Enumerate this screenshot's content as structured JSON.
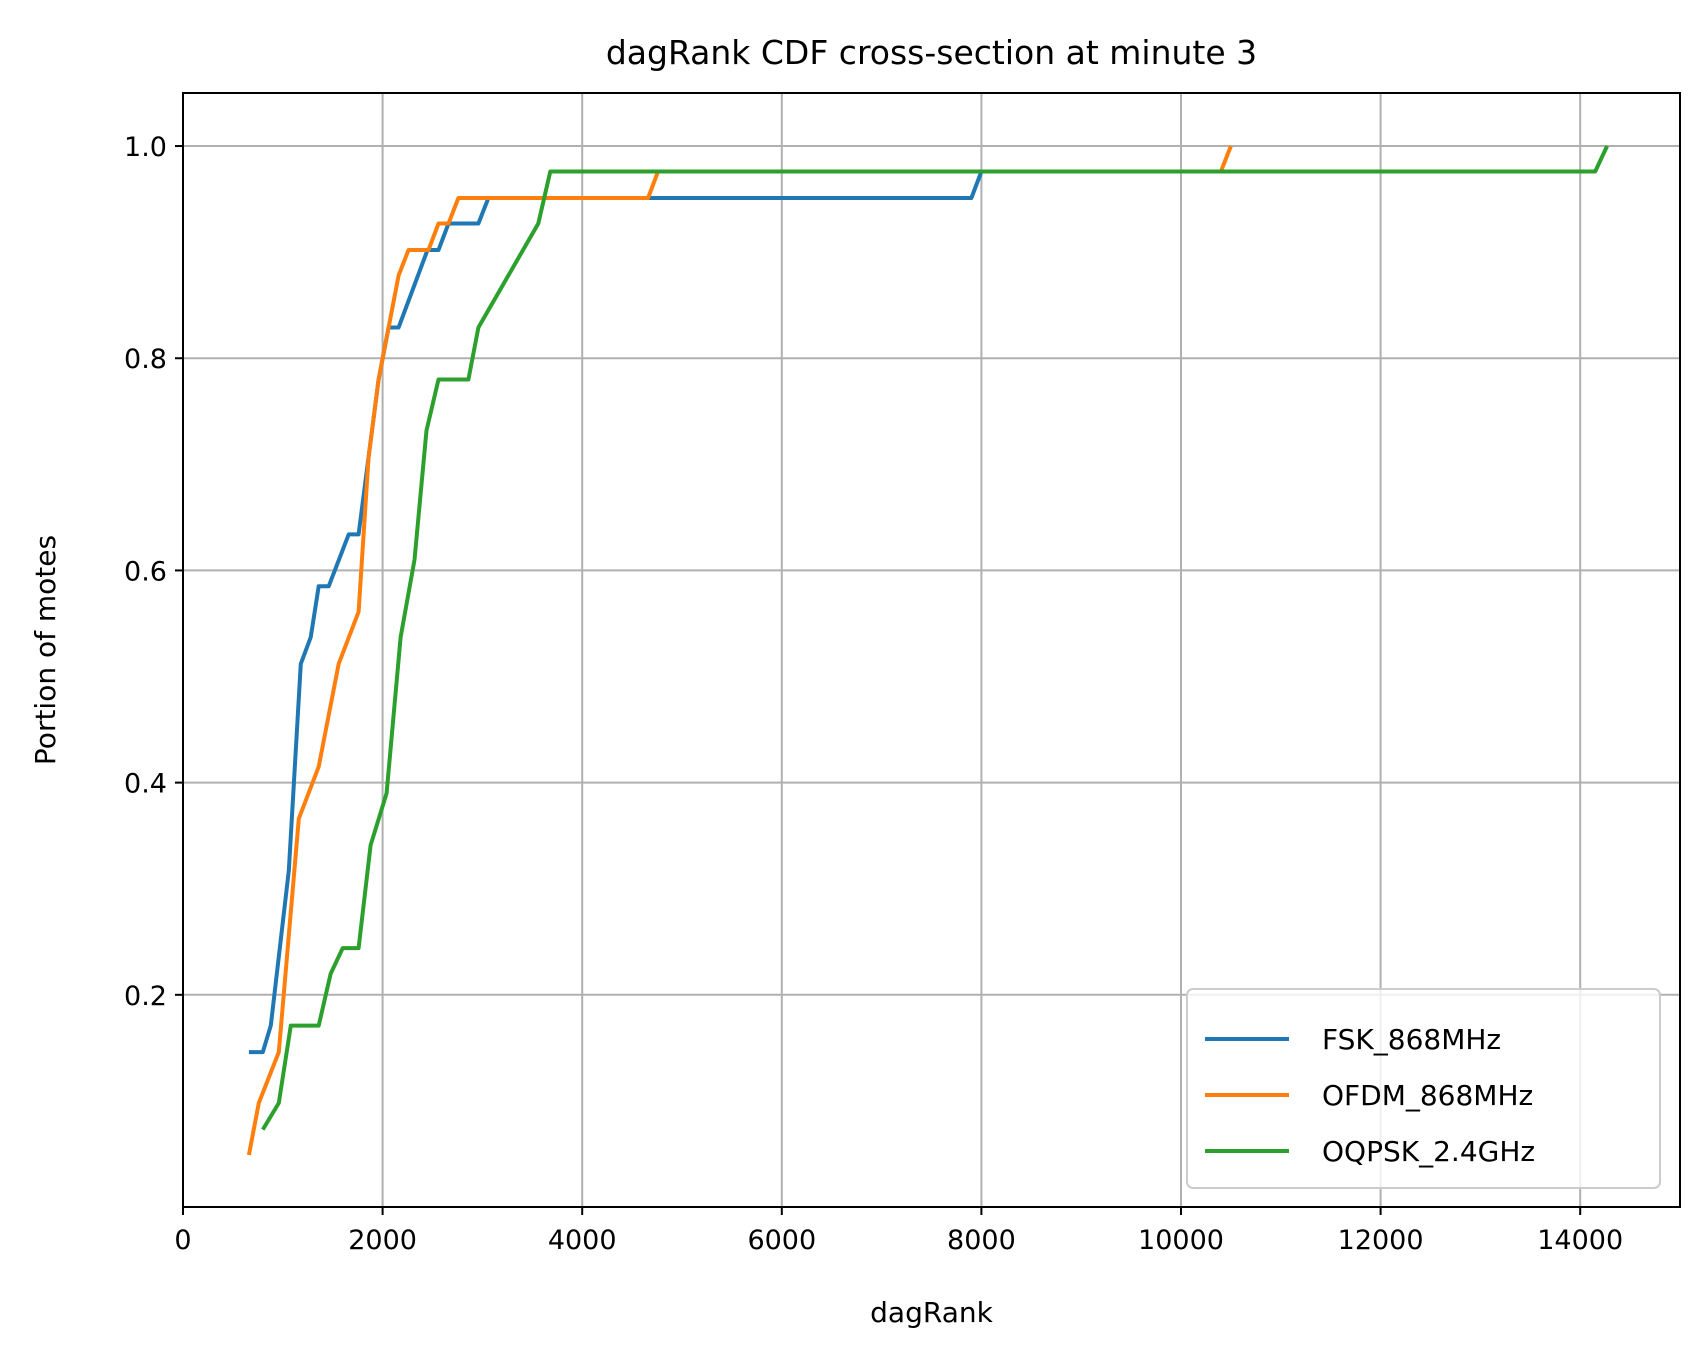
{
  "chart_data": {
    "type": "line",
    "title": "dagRank CDF cross-section at minute 3",
    "xlabel": "dagRank",
    "ylabel": "Portion of motes",
    "xlim": [
      0,
      15000
    ],
    "ylim": [
      0,
      1.05
    ],
    "xticks": [
      0,
      2000,
      4000,
      6000,
      8000,
      10000,
      12000,
      14000
    ],
    "xtick_labels": [
      "0",
      "2000",
      "4000",
      "6000",
      "8000",
      "10000",
      "12000",
      "14000"
    ],
    "yticks": [
      0.2,
      0.4,
      0.6,
      0.8,
      1.0
    ],
    "ytick_labels": [
      "0.2",
      "0.4",
      "0.6",
      "0.8",
      "1.0"
    ],
    "grid": true,
    "legend_position": "lower-right",
    "series": [
      {
        "name": "FSK_868MHz",
        "color": "#1f77b4",
        "points": [
          [
            660,
            0.146
          ],
          [
            800,
            0.146
          ],
          [
            880,
            0.171
          ],
          [
            1060,
            0.317
          ],
          [
            1180,
            0.512
          ],
          [
            1280,
            0.537
          ],
          [
            1360,
            0.585
          ],
          [
            1460,
            0.585
          ],
          [
            1660,
            0.634
          ],
          [
            1760,
            0.634
          ],
          [
            1960,
            0.78
          ],
          [
            2060,
            0.829
          ],
          [
            2160,
            0.829
          ],
          [
            2450,
            0.902
          ],
          [
            2560,
            0.902
          ],
          [
            2660,
            0.927
          ],
          [
            2960,
            0.927
          ],
          [
            3060,
            0.951
          ],
          [
            4560,
            0.951
          ],
          [
            7900,
            0.951
          ],
          [
            8000,
            0.976
          ],
          [
            8300,
            0.976
          ]
        ]
      },
      {
        "name": "OFDM_868MHz",
        "color": "#ff7f0e",
        "points": [
          [
            660,
            0.049
          ],
          [
            760,
            0.098
          ],
          [
            960,
            0.146
          ],
          [
            1160,
            0.366
          ],
          [
            1360,
            0.415
          ],
          [
            1560,
            0.512
          ],
          [
            1760,
            0.561
          ],
          [
            1860,
            0.707
          ],
          [
            1960,
            0.78
          ],
          [
            2160,
            0.878
          ],
          [
            2260,
            0.902
          ],
          [
            2460,
            0.902
          ],
          [
            2560,
            0.927
          ],
          [
            2660,
            0.927
          ],
          [
            2760,
            0.951
          ],
          [
            4660,
            0.951
          ],
          [
            4760,
            0.976
          ],
          [
            10400,
            0.976
          ],
          [
            10500,
            1.0
          ]
        ]
      },
      {
        "name": "OQPSK_2.4GHz",
        "color": "#2ca02c",
        "points": [
          [
            800,
            0.073
          ],
          [
            960,
            0.098
          ],
          [
            1080,
            0.171
          ],
          [
            1360,
            0.171
          ],
          [
            1480,
            0.22
          ],
          [
            1600,
            0.244
          ],
          [
            1760,
            0.244
          ],
          [
            1880,
            0.341
          ],
          [
            2040,
            0.39
          ],
          [
            2180,
            0.537
          ],
          [
            2320,
            0.61
          ],
          [
            2440,
            0.732
          ],
          [
            2560,
            0.78
          ],
          [
            2860,
            0.78
          ],
          [
            2960,
            0.829
          ],
          [
            3560,
            0.927
          ],
          [
            3680,
            0.976
          ],
          [
            14150,
            0.976
          ],
          [
            14270,
            1.0
          ]
        ]
      }
    ]
  }
}
